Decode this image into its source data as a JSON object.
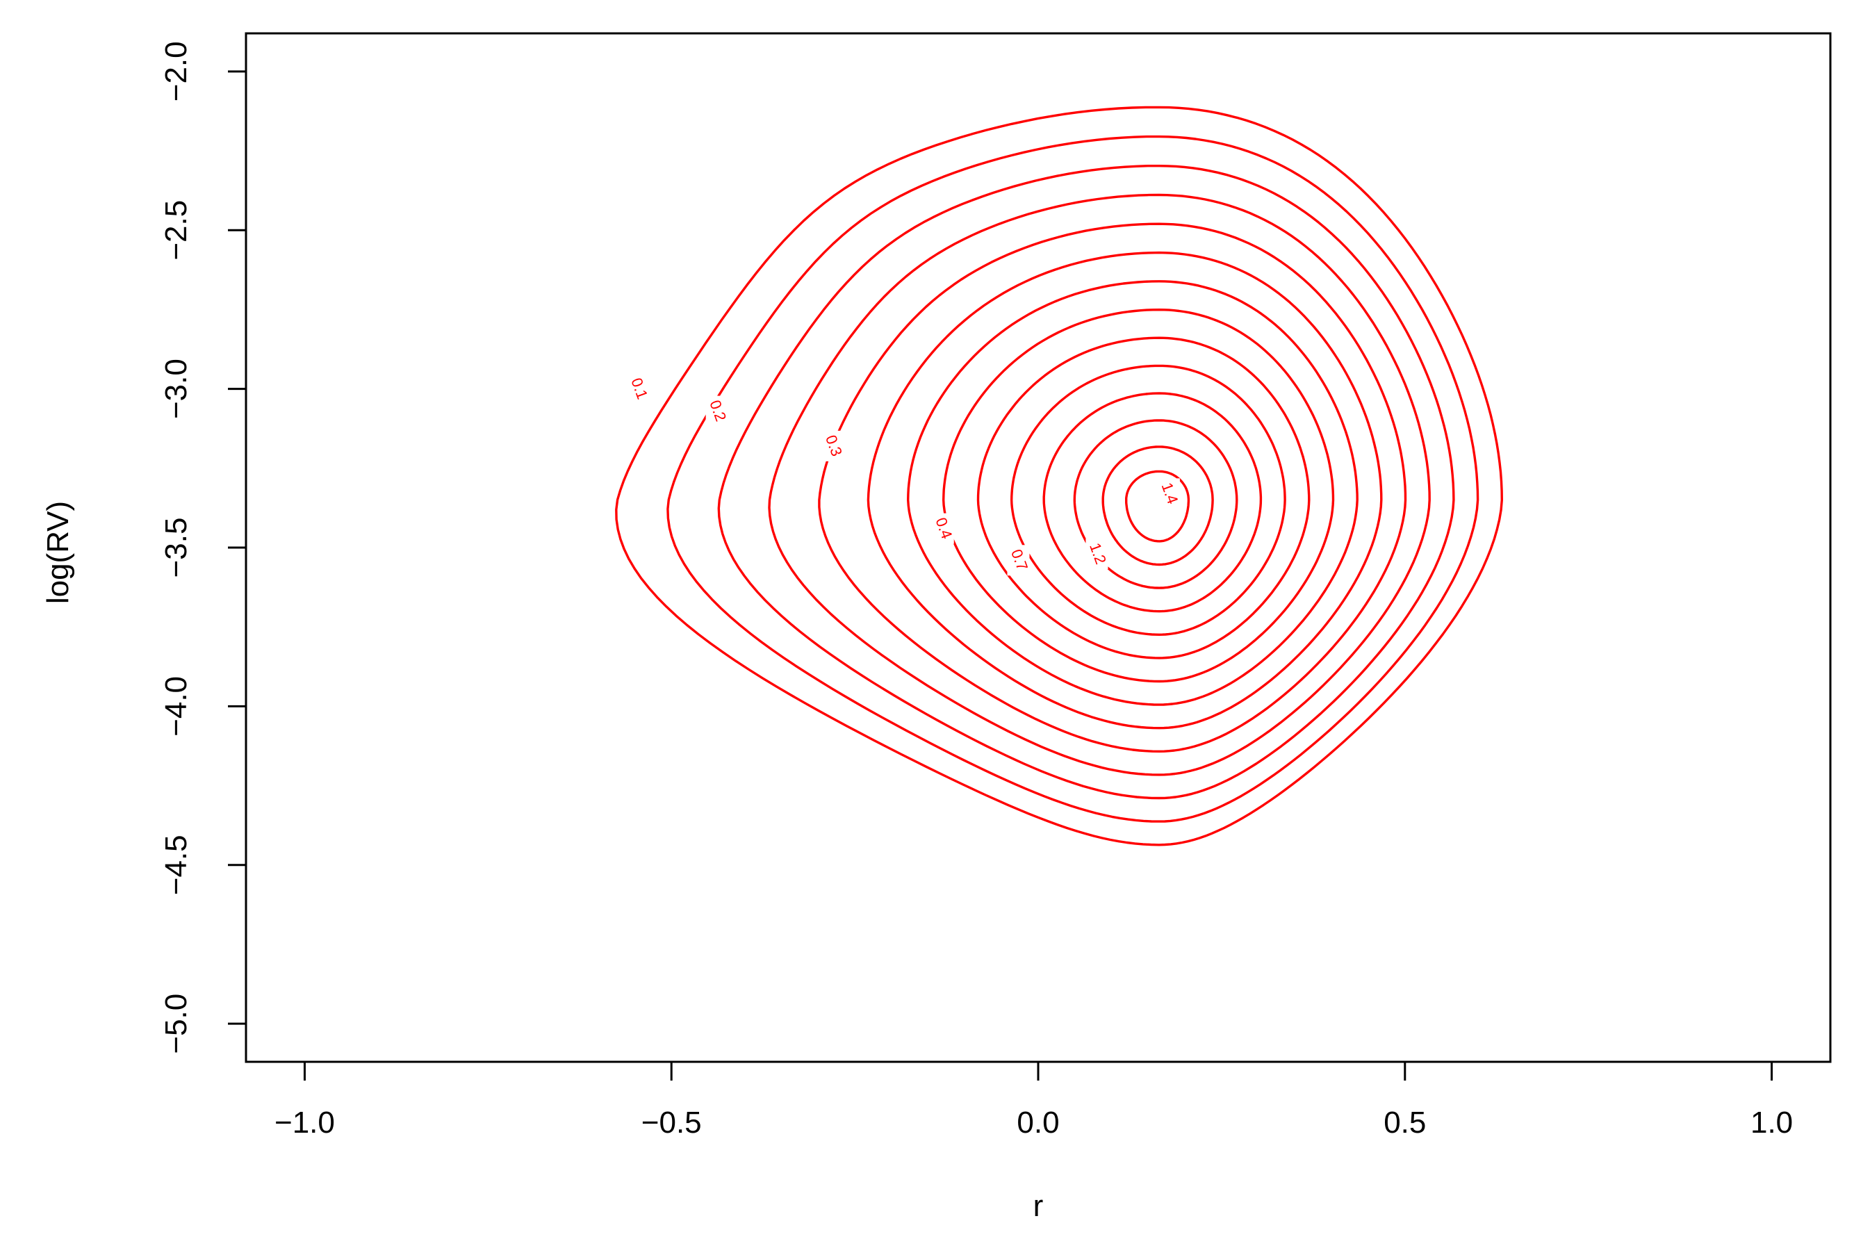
{
  "chart_data": {
    "type": "contour",
    "title": "",
    "xlabel": "r",
    "ylabel": "log(RV)",
    "xlim": [
      -1.08,
      1.08
    ],
    "ylim": [
      -5.12,
      -1.88
    ],
    "xticks": [
      -1.0,
      -0.5,
      0.0,
      0.5,
      1.0
    ],
    "xtick_labels": [
      "−1.0",
      "−0.5",
      "0.0",
      "0.5",
      "1.0"
    ],
    "yticks": [
      -2.0,
      -2.5,
      -3.0,
      -3.5,
      -4.0,
      -4.5,
      -5.0
    ],
    "ytick_labels": [
      "−2.0",
      "−2.5",
      "−3.0",
      "−3.5",
      "−4.0",
      "−4.5",
      "−5.0"
    ],
    "color": "#ff0000",
    "contour_levels": [
      0.1,
      0.2,
      0.3,
      0.4,
      0.5,
      0.6,
      0.7,
      0.8,
      0.9,
      1.0,
      1.1,
      1.2,
      1.3,
      1.4
    ],
    "contour_labels": [
      {
        "text": "0.1",
        "x": -0.545,
        "y": -3.0
      },
      {
        "text": "0.2",
        "x": -0.438,
        "y": -3.07
      },
      {
        "text": "0.3",
        "x": -0.28,
        "y": -3.18
      },
      {
        "text": "0.4",
        "x": -0.13,
        "y": -3.44
      },
      {
        "text": "0.7",
        "x": -0.027,
        "y": -3.54
      },
      {
        "text": "1.2",
        "x": 0.08,
        "y": -3.52
      },
      {
        "text": "1.4",
        "x": 0.178,
        "y": -3.33
      }
    ],
    "peak": {
      "x": 0.165,
      "y": -3.35
    },
    "grid": false
  }
}
